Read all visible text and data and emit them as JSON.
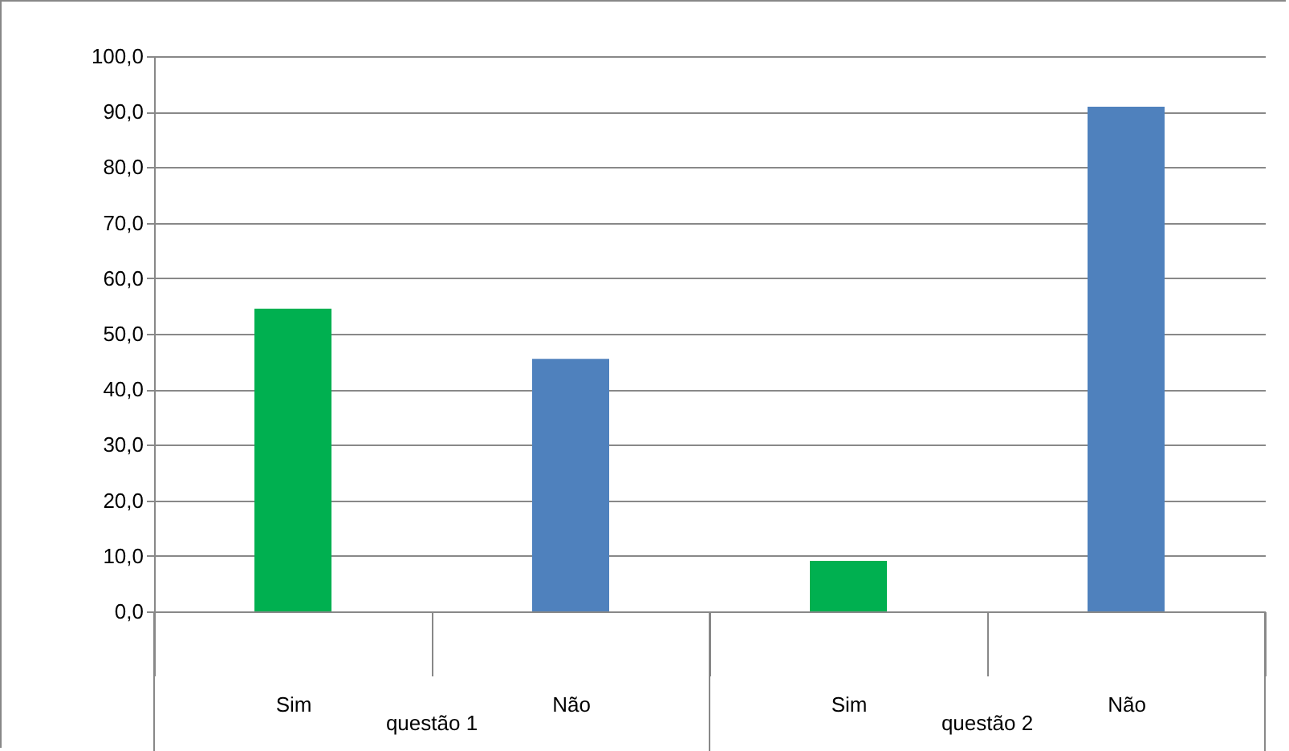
{
  "chart_data": {
    "type": "bar",
    "categories": [
      "Sim",
      "Não",
      "Sim",
      "Não"
    ],
    "values": [
      54.5,
      45.5,
      9.1,
      90.9
    ],
    "colors": [
      "#00b050",
      "#4f81bd",
      "#00b050",
      "#4f81bd"
    ],
    "ylim": [
      0,
      100
    ],
    "yticks": [
      {
        "value": 0,
        "label": "0,0"
      },
      {
        "value": 10,
        "label": "10,0"
      },
      {
        "value": 20,
        "label": "20,0"
      },
      {
        "value": 30,
        "label": "30,0"
      },
      {
        "value": 40,
        "label": "40,0"
      },
      {
        "value": 50,
        "label": "50,0"
      },
      {
        "value": 60,
        "label": "60,0"
      },
      {
        "value": 70,
        "label": "70,0"
      },
      {
        "value": 80,
        "label": "80,0"
      },
      {
        "value": 90,
        "label": "90,0"
      },
      {
        "value": 100,
        "label": "100,0"
      }
    ],
    "grid": "y",
    "annotations": [
      "questão 1",
      "questão 2"
    ]
  }
}
